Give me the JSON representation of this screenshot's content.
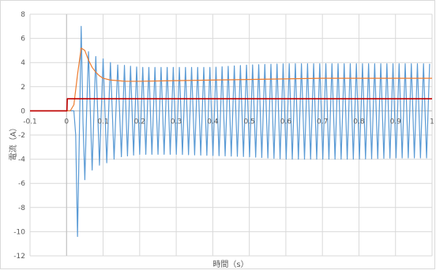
{
  "chart_data": {
    "type": "line",
    "title": "",
    "xlabel": "時間（s）",
    "ylabel": "電流（A）",
    "xlim": [
      -0.1,
      1
    ],
    "ylim": [
      -12,
      8
    ],
    "grid": true,
    "x_ticks": [
      -0.1,
      0,
      0.1,
      0.2,
      0.3,
      0.4,
      0.5,
      0.6,
      0.7,
      0.8,
      0.9,
      1
    ],
    "x_tick_labels": [
      "-0.1",
      "0",
      "0.1",
      "0.2",
      "0.3",
      "0.4",
      "0.5",
      "0.6",
      "0.7",
      "0.8",
      "0.9",
      "1"
    ],
    "y_ticks": [
      -12,
      -10,
      -8,
      -6,
      -4,
      -2,
      0,
      2,
      4,
      6,
      8
    ],
    "y_tick_labels": [
      "-12",
      "-10",
      "-8",
      "-6",
      "-4",
      "-2",
      "0",
      "2",
      "4",
      "6",
      "8"
    ],
    "series": [
      {
        "color": "#5b9bd5",
        "x": [
          -0.1,
          0,
          0.01,
          0.02,
          0.025,
          0.03,
          0.035,
          0.04,
          0.045,
          0.05,
          0.055,
          0.06,
          0.065,
          0.07,
          0.075,
          0.08,
          0.085,
          0.09,
          0.095,
          0.1,
          0.105,
          0.11,
          0.12,
          0.13,
          0.14,
          0.15,
          0.2,
          0.3,
          0.4,
          0.5,
          0.6,
          0.7,
          0.8,
          0.9,
          1.0
        ],
        "y": [
          0,
          0,
          0,
          0,
          -2,
          -10.4,
          -2,
          7,
          -1,
          -5.7,
          0,
          4.9,
          0,
          -4.9,
          0,
          4.5,
          0,
          -4.5,
          0,
          4.3,
          0,
          -4.3,
          4.0,
          -4.0,
          3.8,
          -3.8,
          3.6,
          3.6,
          3.6,
          3.8,
          3.9,
          3.9,
          3.9,
          3.9,
          3.9
        ],
        "envelope_upper": [
          [
            0.15,
            3.8
          ],
          [
            0.2,
            3.6
          ],
          [
            0.3,
            3.6
          ],
          [
            0.4,
            3.6
          ],
          [
            0.5,
            3.8
          ],
          [
            0.6,
            3.9
          ],
          [
            0.7,
            3.9
          ],
          [
            0.8,
            3.9
          ],
          [
            0.9,
            3.9
          ],
          [
            1.0,
            3.9
          ]
        ],
        "envelope_lower": [
          [
            0.15,
            -3.8
          ],
          [
            0.2,
            -3.6
          ],
          [
            0.3,
            -3.6
          ],
          [
            0.4,
            -3.7
          ],
          [
            0.5,
            -3.8
          ],
          [
            0.6,
            -4.0
          ],
          [
            0.7,
            -4.0
          ],
          [
            0.8,
            -4.0
          ],
          [
            0.9,
            -3.9
          ],
          [
            1.0,
            -3.9
          ]
        ],
        "oscillation_period_s": 0.0167
      },
      {
        "color": "#ed7d31",
        "x": [
          -0.1,
          0,
          0.01,
          0.02,
          0.03,
          0.04,
          0.05,
          0.06,
          0.07,
          0.08,
          0.09,
          0.1,
          0.12,
          0.14,
          0.16,
          0.2,
          0.3,
          0.4,
          0.5,
          0.6,
          0.7,
          0.8,
          0.9,
          1.0
        ],
        "y": [
          0,
          0,
          0,
          0.5,
          3,
          5.2,
          5,
          4.2,
          3.6,
          3.2,
          2.9,
          2.7,
          2.55,
          2.5,
          2.45,
          2.45,
          2.5,
          2.55,
          2.6,
          2.65,
          2.7,
          2.7,
          2.7,
          2.7
        ]
      },
      {
        "color": "#c00000",
        "x": [
          -0.1,
          0,
          0.001,
          0.002,
          1.0
        ],
        "y": [
          0,
          0,
          0,
          1,
          1
        ]
      }
    ]
  }
}
